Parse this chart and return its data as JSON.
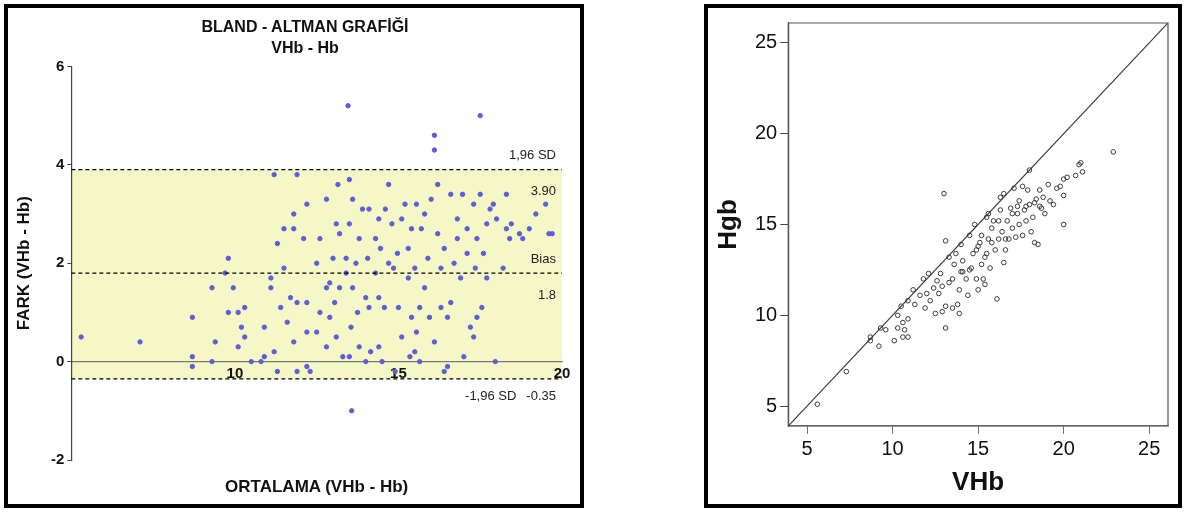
{
  "chart_data": [
    {
      "type": "scatter",
      "title": "BLAND - ALTMAN GRAFİĞİ",
      "subtitle": "VHb - Hb",
      "xlabel": "ORTALAMA (VHb - Hb)",
      "ylabel": "FARK (VHb - Hb)",
      "xlim": [
        5,
        20
      ],
      "ylim": [
        -2,
        6
      ],
      "xticks": [
        10,
        15,
        20
      ],
      "yticks": [
        -2,
        0,
        2,
        4,
        6
      ],
      "bands": [
        {
          "axis": "y",
          "from": -0.35,
          "to": 3.9,
          "color": "#f5f8c6"
        }
      ],
      "ref_lines": [
        {
          "axis": "y",
          "value": 3.9,
          "color": "#000000",
          "line_style": "dashed",
          "label": "1,96 SD"
        },
        {
          "axis": "y",
          "value": 1.8,
          "color": "#000000",
          "line_style": "dashed",
          "label": "Bias"
        },
        {
          "axis": "y",
          "value": -0.35,
          "color": "#000000",
          "line_style": "dashed",
          "label": "-1,96 SD"
        }
      ],
      "annotations": [
        "3.90",
        "1.8",
        "-0.35"
      ],
      "series": [
        {
          "type": "scatter",
          "color": "#5b5fd9",
          "marker": "circle",
          "x": [
            5.3,
            7.1,
            8.7,
            8.7,
            8.7,
            9.3,
            9.3,
            9.4,
            9.7,
            9.8,
            9.8,
            9.95,
            10.1,
            10.1,
            10.2,
            10.3,
            10.3,
            10.5,
            10.8,
            10.9,
            10.9,
            11.1,
            11.1,
            11.2,
            11.2,
            11.3,
            11.3,
            11.5,
            11.4,
            11.5,
            11.6,
            11.7,
            11.8,
            11.8,
            11.8,
            11.9,
            11.9,
            11.9,
            12.1,
            12.2,
            12.2,
            12.3,
            12.2,
            12.2,
            12.5,
            12.5,
            12.6,
            12.6,
            12.8,
            12.8,
            12.8,
            12.9,
            12.9,
            13.0,
            13.05,
            13.1,
            13.1,
            13.15,
            13.2,
            13.2,
            13.3,
            13.4,
            13.4,
            13.46,
            13.5,
            13.5,
            13.5,
            13.55,
            13.57,
            13.6,
            13.6,
            13.7,
            13.75,
            13.8,
            13.8,
            13.9,
            14.0,
            14.0,
            14.06,
            14.1,
            14.1,
            14.15,
            14.3,
            14.3,
            14.4,
            14.4,
            14.4,
            14.45,
            14.5,
            14.57,
            14.6,
            14.7,
            14.7,
            14.8,
            14.85,
            14.9,
            14.97,
            15.0,
            15.1,
            15.1,
            15.2,
            15.3,
            15.3,
            15.35,
            15.4,
            15.4,
            15.5,
            15.5,
            15.55,
            15.55,
            15.65,
            15.65,
            15.7,
            15.8,
            15.8,
            15.9,
            15.95,
            16.0,
            16.1,
            16.1,
            16.1,
            16.2,
            16.2,
            16.3,
            16.3,
            16.4,
            16.4,
            16.5,
            16.5,
            16.6,
            16.6,
            16.7,
            16.8,
            16.8,
            16.9,
            16.96,
            17.0,
            17.1,
            17.1,
            17.2,
            17.3,
            17.3,
            17.35,
            17.4,
            17.4,
            17.5,
            17.5,
            17.55,
            17.6,
            17.7,
            17.7,
            17.8,
            17.9,
            17.96,
            18.0,
            18.2,
            18.3,
            18.3,
            18.4,
            18.45,
            18.7,
            18.8,
            19.0,
            19.2,
            19.5,
            19.6,
            19.7
          ],
          "values": [
            0.5,
            0.4,
            0.1,
            -0.1,
            0.9,
            0,
            1.5,
            0.4,
            1.8,
            2.1,
            1.0,
            1.5,
            1.0,
            0.3,
            0.7,
            0.5,
            1.1,
            0,
            0,
            0.7,
            0.1,
            1.5,
            1.7,
            3.8,
            0.2,
            -0.2,
            2.4,
            2.7,
            1.1,
            1.9,
            0.8,
            1.3,
            0.4,
            2.7,
            3.0,
            -0.2,
            3.8,
            1.2,
            2.5,
            3.2,
            0.6,
            -0.2,
            -0.1,
            1.2,
            0.6,
            2.0,
            1.0,
            2.5,
            3.3,
            0.3,
            1.5,
            1.6,
            0.9,
            2.1,
            1.2,
            2.8,
            0.5,
            3.6,
            1.5,
            2.6,
            0.1,
            2.1,
            1.8,
            5.2,
            2.8,
            3.7,
            0.1,
            0.7,
            -1.0,
            1.5,
            3.3,
            2.0,
            1.0,
            2.5,
            0.3,
            3.1,
            1.3,
            0,
            2.1,
            1.1,
            3.1,
            0.2,
            1.8,
            2.5,
            2.9,
            0.3,
            1.3,
            2.3,
            0,
            1.1,
            3.1,
            3.6,
            2.0,
            2.8,
            1.9,
            -0.2,
            2.2,
            1.1,
            2.9,
            0.5,
            3.2,
            1.7,
            2.3,
            0.1,
            2.7,
            0.9,
            0.2,
            1.9,
            3.2,
            0.6,
            1.1,
            0,
            2.7,
            3.0,
            1.5,
            2.1,
            0.9,
            3.3,
            0.4,
            4.6,
            4.3,
            3.6,
            2.6,
            1.9,
            1.1,
            -0.2,
            2.3,
            0.9,
            -0.1,
            3.4,
            1.2,
            2.0,
            2.5,
            2.9,
            1.7,
            3.4,
            0.1,
            2.7,
            2.2,
            0.7,
            3.2,
            0.5,
            1.9,
            2.5,
            0.9,
            5.0,
            3.4,
            1.1,
            2.2,
            2.8,
            1.7,
            3.1,
            3.2,
            0,
            2.9,
            1.9,
            2.7,
            3.4,
            2.5,
            2.8,
            2.6,
            2.5,
            2.7,
            3.0,
            3.2,
            2.6,
            2.6
          ]
        }
      ]
    },
    {
      "type": "scatter",
      "xlabel": "VHb",
      "ylabel": "Hgb",
      "xlim": [
        3.9,
        26.1
      ],
      "ylim": [
        3.9,
        26.1
      ],
      "xticks": [
        5,
        10,
        15,
        20,
        25
      ],
      "yticks": [
        5,
        10,
        15,
        20,
        25
      ],
      "series": [
        {
          "type": "scatter",
          "color": "#3c3c3c",
          "marker": "circle",
          "x": [
            5.6,
            7.3,
            8.7,
            8.7,
            9.2,
            9.3,
            9.6,
            10.1,
            10.3,
            10.3,
            10.5,
            10.6,
            10.6,
            10.7,
            10.9,
            10.9,
            10.9,
            11.2,
            11.3,
            11.6,
            11.8,
            11.9,
            12.0,
            12.1,
            12.2,
            12.4,
            12.5,
            12.6,
            12.7,
            12.8,
            12.9,
            13.0,
            13.1,
            13.1,
            13.1,
            13.3,
            13.3,
            13.5,
            13.5,
            13.6,
            13.7,
            13.8,
            13.9,
            13.9,
            14.0,
            14.0,
            14.1,
            14.3,
            14.4,
            14.5,
            14.6,
            14.7,
            14.8,
            14.9,
            15.0,
            15.0,
            15.2,
            15.2,
            15.3,
            15.4,
            15.5,
            15.5,
            15.6,
            15.6,
            15.7,
            15.8,
            15.9,
            16.0,
            16.1,
            16.2,
            16.3,
            16.3,
            16.4,
            16.5,
            16.5,
            16.6,
            16.7,
            16.8,
            16.9,
            17.0,
            17.1,
            17.2,
            17.3,
            17.4,
            17.4,
            17.6,
            17.6,
            17.7,
            17.8,
            17.9,
            18.0,
            18.0,
            18.1,
            18.2,
            18.3,
            18.4,
            18.5,
            18.6,
            18.7,
            18.8,
            18.9,
            19.1,
            19.2,
            19.4,
            19.6,
            19.8,
            20.0,
            20.0,
            20.0,
            20.2,
            20.7,
            20.9,
            21.0,
            21.1,
            22.9,
            12.9,
            14.1,
            14.5,
            14.9,
            15.1,
            15.4,
            15.8,
            16.2,
            16.6,
            17.0,
            17.3,
            17.8,
            18.3,
            18.6
          ],
          "values": [
            5.1,
            6.9,
            8.8,
            8.6,
            8.3,
            9.3,
            9.2,
            8.6,
            9.3,
            10.0,
            10.5,
            8.8,
            9.6,
            9.2,
            8.8,
            9.8,
            10.8,
            11.4,
            10.6,
            11.1,
            12.0,
            10.4,
            11.2,
            12.3,
            10.8,
            11.5,
            10.1,
            11.9,
            11.2,
            12.3,
            10.2,
            16.7,
            9.3,
            14.1,
            10.5,
            11.8,
            13.2,
            10.4,
            12.0,
            12.8,
            13.4,
            10.6,
            10.1,
            11.4,
            12.4,
            13.9,
            13.0,
            12.0,
            11.1,
            14.4,
            12.6,
            13.4,
            15.0,
            12.0,
            11.4,
            13.8,
            12.8,
            14.4,
            12.0,
            11.7,
            13.4,
            15.4,
            15.6,
            14.2,
            12.6,
            14.8,
            15.2,
            13.6,
            10.9,
            14.2,
            15.8,
            16.5,
            14.6,
            12.9,
            16.7,
            13.6,
            15.2,
            14.2,
            15.9,
            14.8,
            17.0,
            14.3,
            15.6,
            15.0,
            16.3,
            17.1,
            14.4,
            15.8,
            15.2,
            16.9,
            18.0,
            16.1,
            14.6,
            15.4,
            14.0,
            16.4,
            13.9,
            16.9,
            15.9,
            16.5,
            15.6,
            17.2,
            16.3,
            16.1,
            17.0,
            17.1,
            17.5,
            15.0,
            16.6,
            17.6,
            17.7,
            18.3,
            18.4,
            17.9,
            19.0,
            11.6,
            12.4,
            12.5,
            13.6,
            14.0,
            13.2,
            14.0,
            15.2,
            14.2,
            15.6,
            16.0,
            16.0,
            16.2,
            16.0
          ]
        },
        {
          "type": "line",
          "color": "#3c3c3c",
          "line_style": "solid",
          "x": [
            3.9,
            26.1
          ],
          "values": [
            3.9,
            26.1
          ]
        }
      ]
    }
  ]
}
